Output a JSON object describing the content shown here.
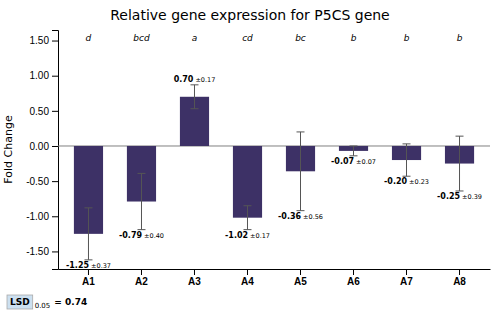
{
  "chart_data": {
    "type": "bar",
    "title": "Relative gene expression for P5CS gene",
    "ylabel": "Fold Change",
    "categories": [
      "A1",
      "A2",
      "A3",
      "A4",
      "A5",
      "A6",
      "A7",
      "A8"
    ],
    "values": [
      -1.25,
      -0.79,
      0.7,
      -1.02,
      -0.36,
      -0.07,
      -0.2,
      -0.25
    ],
    "value_labels": [
      "-1.25",
      "-0.79",
      "0.70",
      "-1.02",
      "-0.36",
      "-0.07",
      "-0.20",
      "-0.25"
    ],
    "errors": [
      0.37,
      0.4,
      0.17,
      0.17,
      0.56,
      0.07,
      0.23,
      0.39
    ],
    "error_labels": [
      "±0.37",
      "±0.40",
      "±0.17",
      "±0.17",
      "±0.56",
      "±0.07",
      "±0.23",
      "±0.39"
    ],
    "sig_labels": [
      "d",
      "bcd",
      "a",
      "cd",
      "bc",
      "b",
      "b",
      "b"
    ],
    "annotations": [
      "LSD",
      "0.05",
      "= 0.74"
    ],
    "color": "#3d3166",
    "ylim": [
      -1.75,
      1.65
    ],
    "yticks": [
      {
        "value": -1.5,
        "label": "-1.50"
      },
      {
        "value": -1.0,
        "label": "-1.00"
      },
      {
        "value": -0.5,
        "label": "-0.50"
      },
      {
        "value": 0,
        "label": "0.00"
      },
      {
        "value": 0.5,
        "label": "0.50"
      },
      {
        "value": 1.0,
        "label": "1.00"
      },
      {
        "value": 1.5,
        "label": "1.50"
      }
    ],
    "grid": false,
    "data_labels": true
  }
}
